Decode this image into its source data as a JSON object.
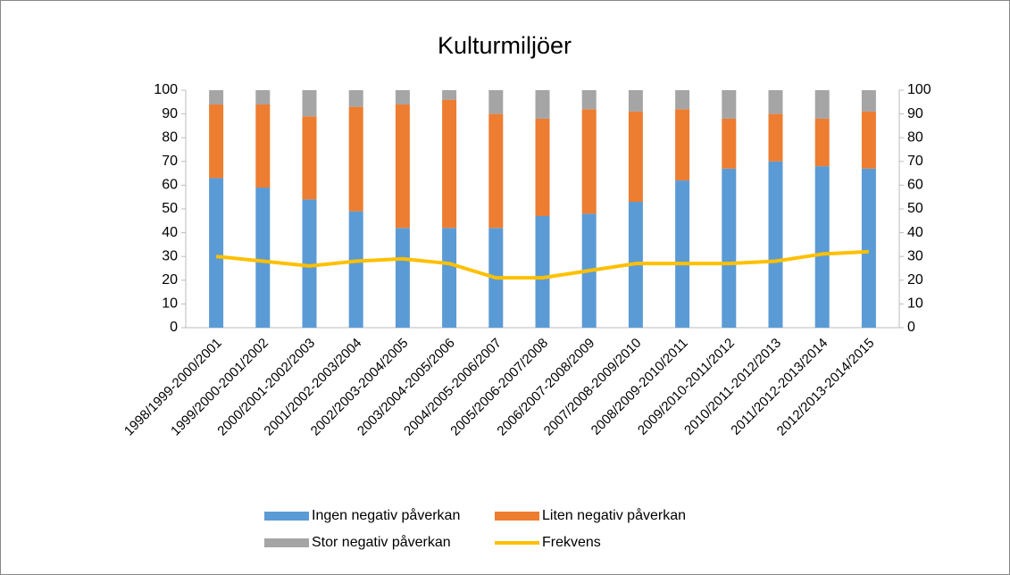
{
  "chart_data": {
    "type": "bar",
    "stacked": true,
    "title": "Kulturmiljöer",
    "categories": [
      "1998/1999-2000/2001",
      "1999/2000-2001/2002",
      "2000/2001-2002/2003",
      "2001/2002-2003/2004",
      "2002/2003-2004/2005",
      "2003/2004-2005/2006",
      "2004/2005-2006/2007",
      "2005/2006-2007/2008",
      "2006/2007-2008/2009",
      "2007/2008-2009/2010",
      "2008/2009-2010/2011",
      "2009/2010-2011/2012",
      "2010/2011-2012/2013",
      "2011/2012-2013/2014",
      "2012/2013-2014/2015"
    ],
    "series": [
      {
        "name": "Ingen negativ påverkan",
        "color": "#5b9bd5",
        "type": "bar",
        "values": [
          63,
          59,
          54,
          49,
          42,
          42,
          42,
          47,
          48,
          53,
          62,
          67,
          70,
          68,
          67
        ]
      },
      {
        "name": "Liten negativ påverkan",
        "color": "#ed7d31",
        "type": "bar",
        "values": [
          31,
          35,
          35,
          44,
          52,
          54,
          48,
          41,
          44,
          38,
          30,
          21,
          20,
          20,
          24
        ]
      },
      {
        "name": "Stor negativ påverkan",
        "color": "#a5a5a5",
        "type": "bar",
        "values": [
          6,
          6,
          11,
          7,
          6,
          4,
          10,
          12,
          8,
          9,
          8,
          12,
          10,
          12,
          9
        ]
      },
      {
        "name": "Frekvens",
        "color": "#ffc000",
        "type": "line",
        "axis": "y2",
        "values": [
          30,
          28,
          26,
          28,
          29,
          27,
          21,
          21,
          24,
          27,
          27,
          27,
          28,
          31,
          32
        ]
      }
    ],
    "ylim": [
      0,
      100
    ],
    "yticks": [
      0,
      10,
      20,
      30,
      40,
      50,
      60,
      70,
      80,
      90,
      100
    ],
    "y2lim": [
      0,
      100
    ],
    "y2ticks": [
      0,
      10,
      20,
      30,
      40,
      50,
      60,
      70,
      80,
      90,
      100
    ],
    "grid": false,
    "legend": "bottom"
  }
}
